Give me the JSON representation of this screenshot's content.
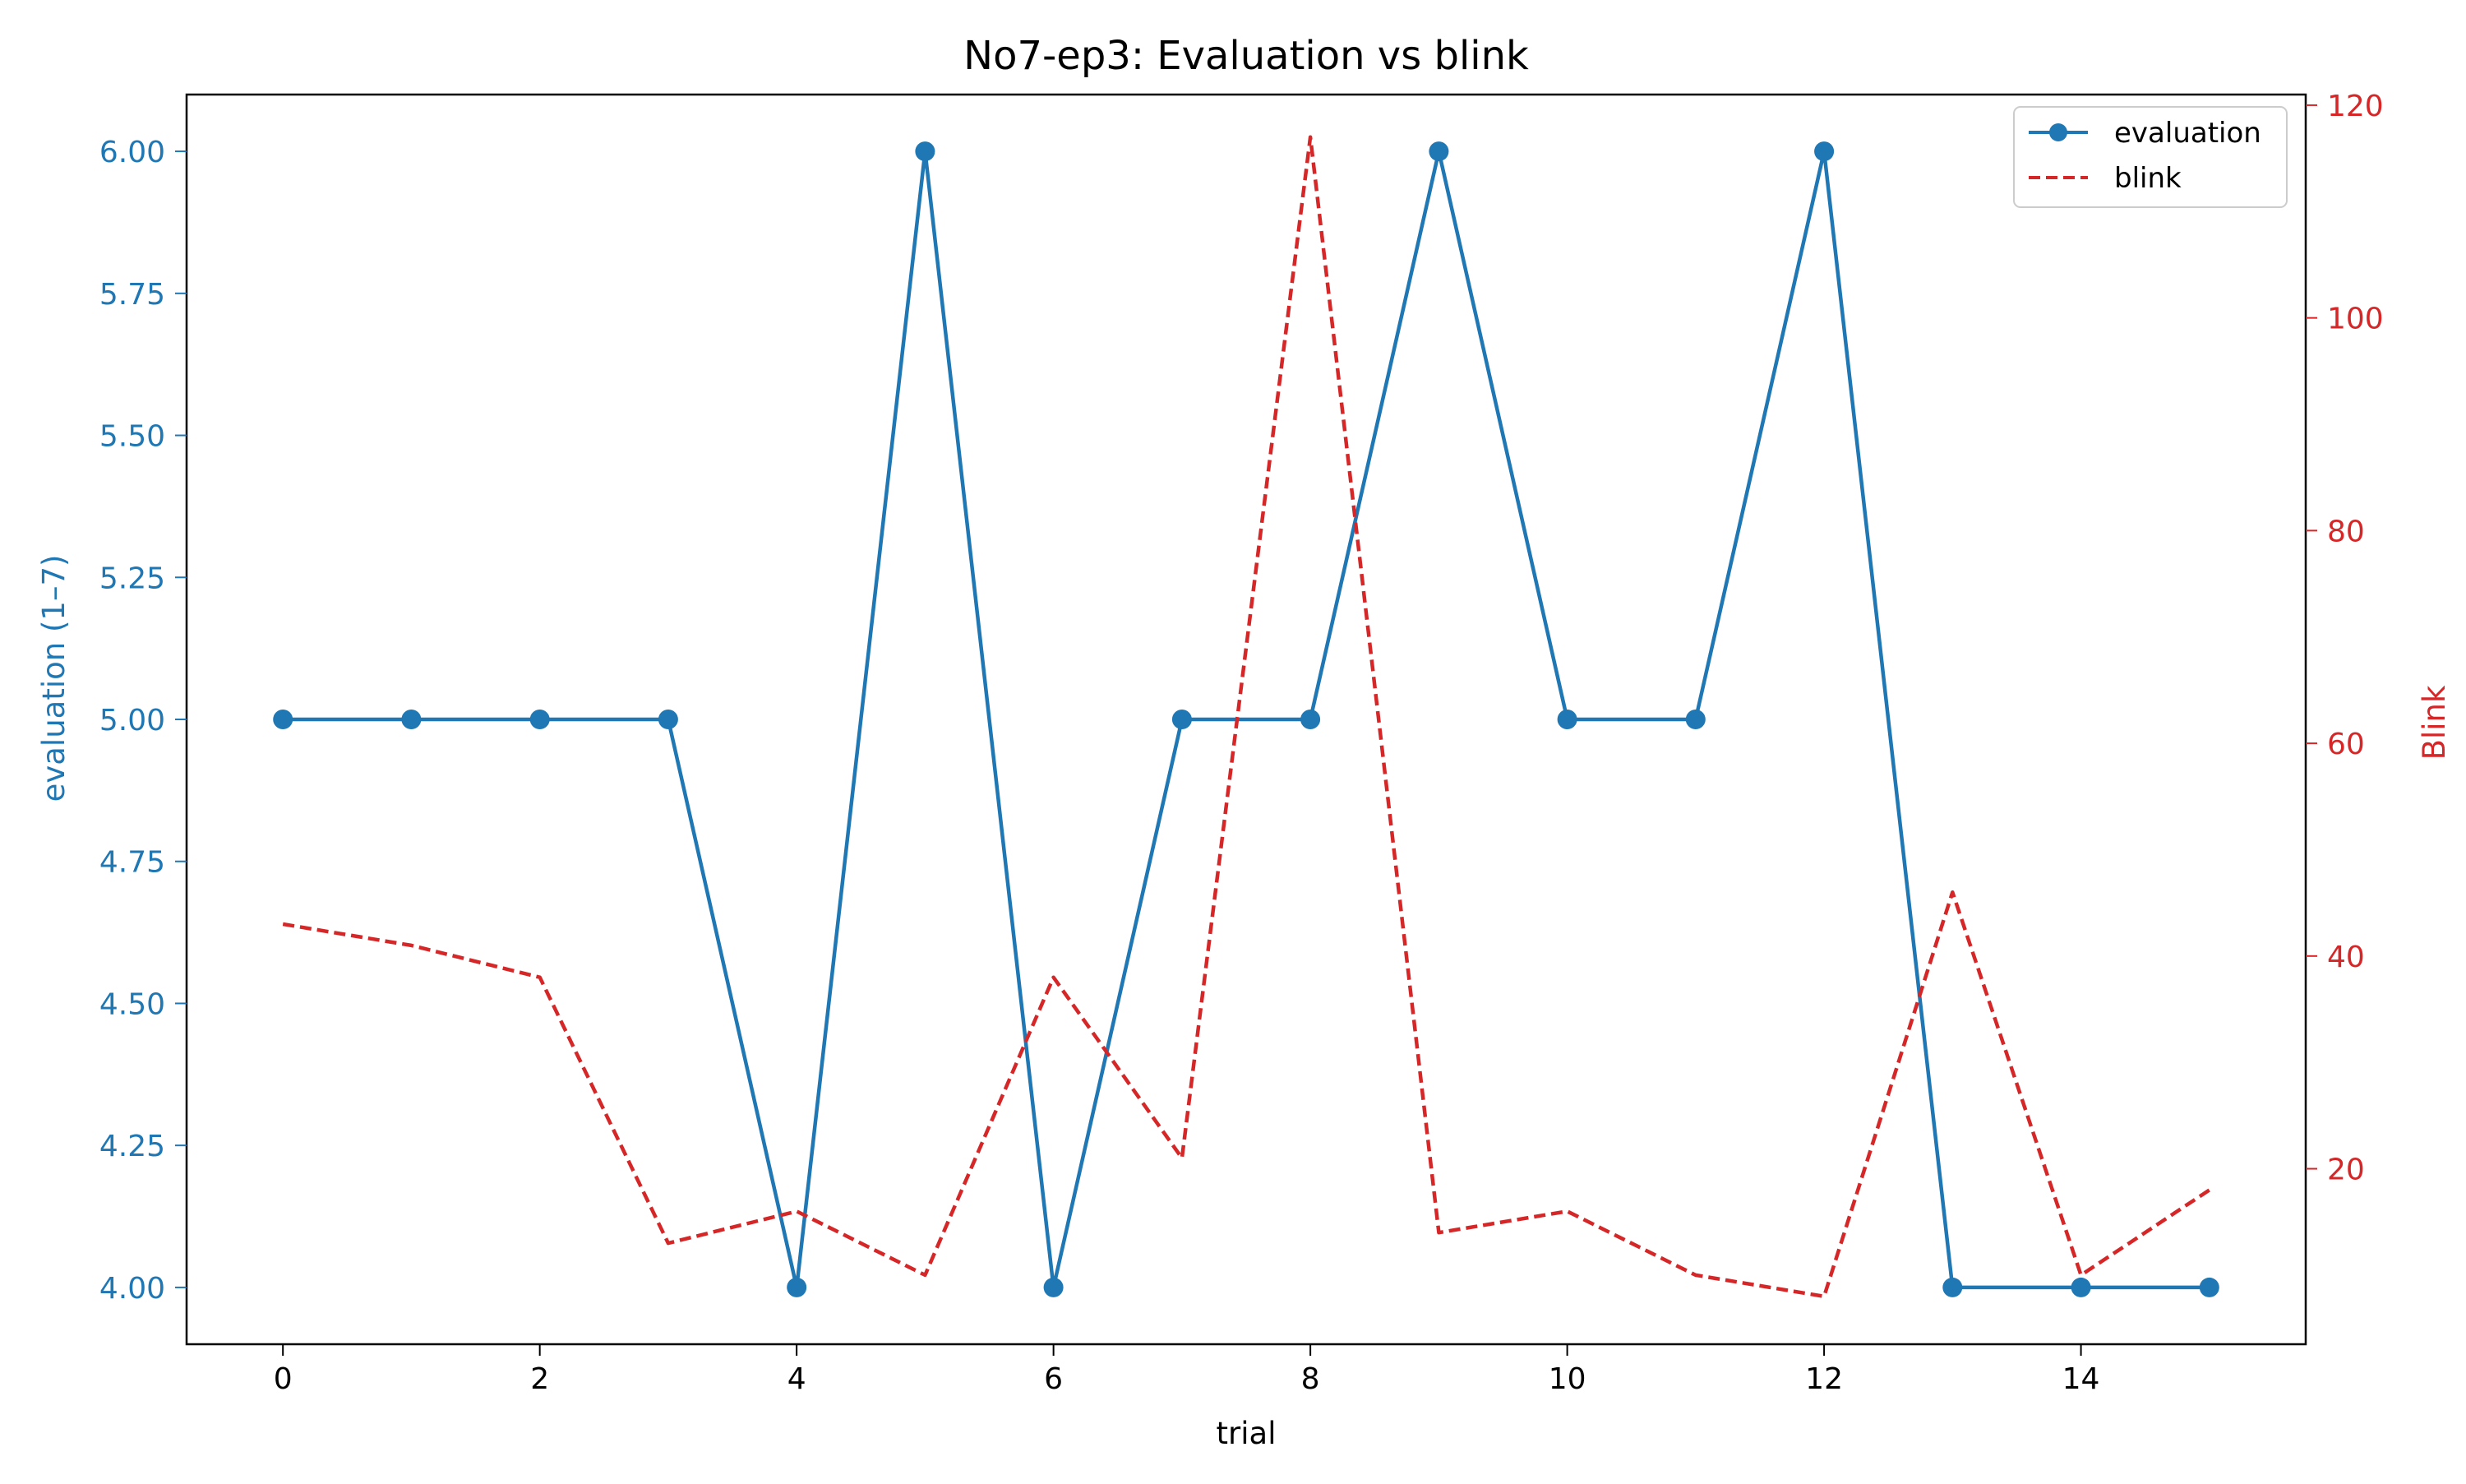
{
  "chart_data": {
    "type": "line",
    "title": "No7-ep3: Evaluation vs blink",
    "xlabel": "trial",
    "ylabel_left": "evaluation (1–7)",
    "ylabel_right": "Blink",
    "x": [
      0,
      1,
      2,
      3,
      4,
      5,
      6,
      7,
      8,
      9,
      10,
      11,
      12,
      13,
      14,
      15
    ],
    "xlim": [
      -0.75,
      15.75
    ],
    "ylim_left": [
      3.9,
      6.1
    ],
    "ylim_right": [
      3.5,
      121
    ],
    "x_ticks": [
      "0",
      "2",
      "4",
      "6",
      "8",
      "10",
      "12",
      "14"
    ],
    "y_ticks_left": [
      "4.00",
      "4.25",
      "4.50",
      "4.75",
      "5.00",
      "5.25",
      "5.50",
      "5.75",
      "6.00"
    ],
    "y_ticks_right": [
      "20",
      "40",
      "60",
      "80",
      "100",
      "120"
    ],
    "grid": false,
    "legend_position": "top-right",
    "series": [
      {
        "name": "evaluation",
        "axis": "left",
        "style": "solid-with-markers",
        "color": "#1f77b4",
        "values": [
          5,
          5,
          5,
          5,
          4,
          6,
          4,
          5,
          5,
          6,
          5,
          5,
          6,
          4,
          4,
          4
        ]
      },
      {
        "name": "blink",
        "axis": "right",
        "style": "dashed",
        "color": "#d62728",
        "values": [
          43,
          41,
          38,
          13,
          16,
          10,
          38,
          21,
          117,
          14,
          16,
          10,
          8,
          46,
          10,
          18
        ]
      }
    ]
  }
}
